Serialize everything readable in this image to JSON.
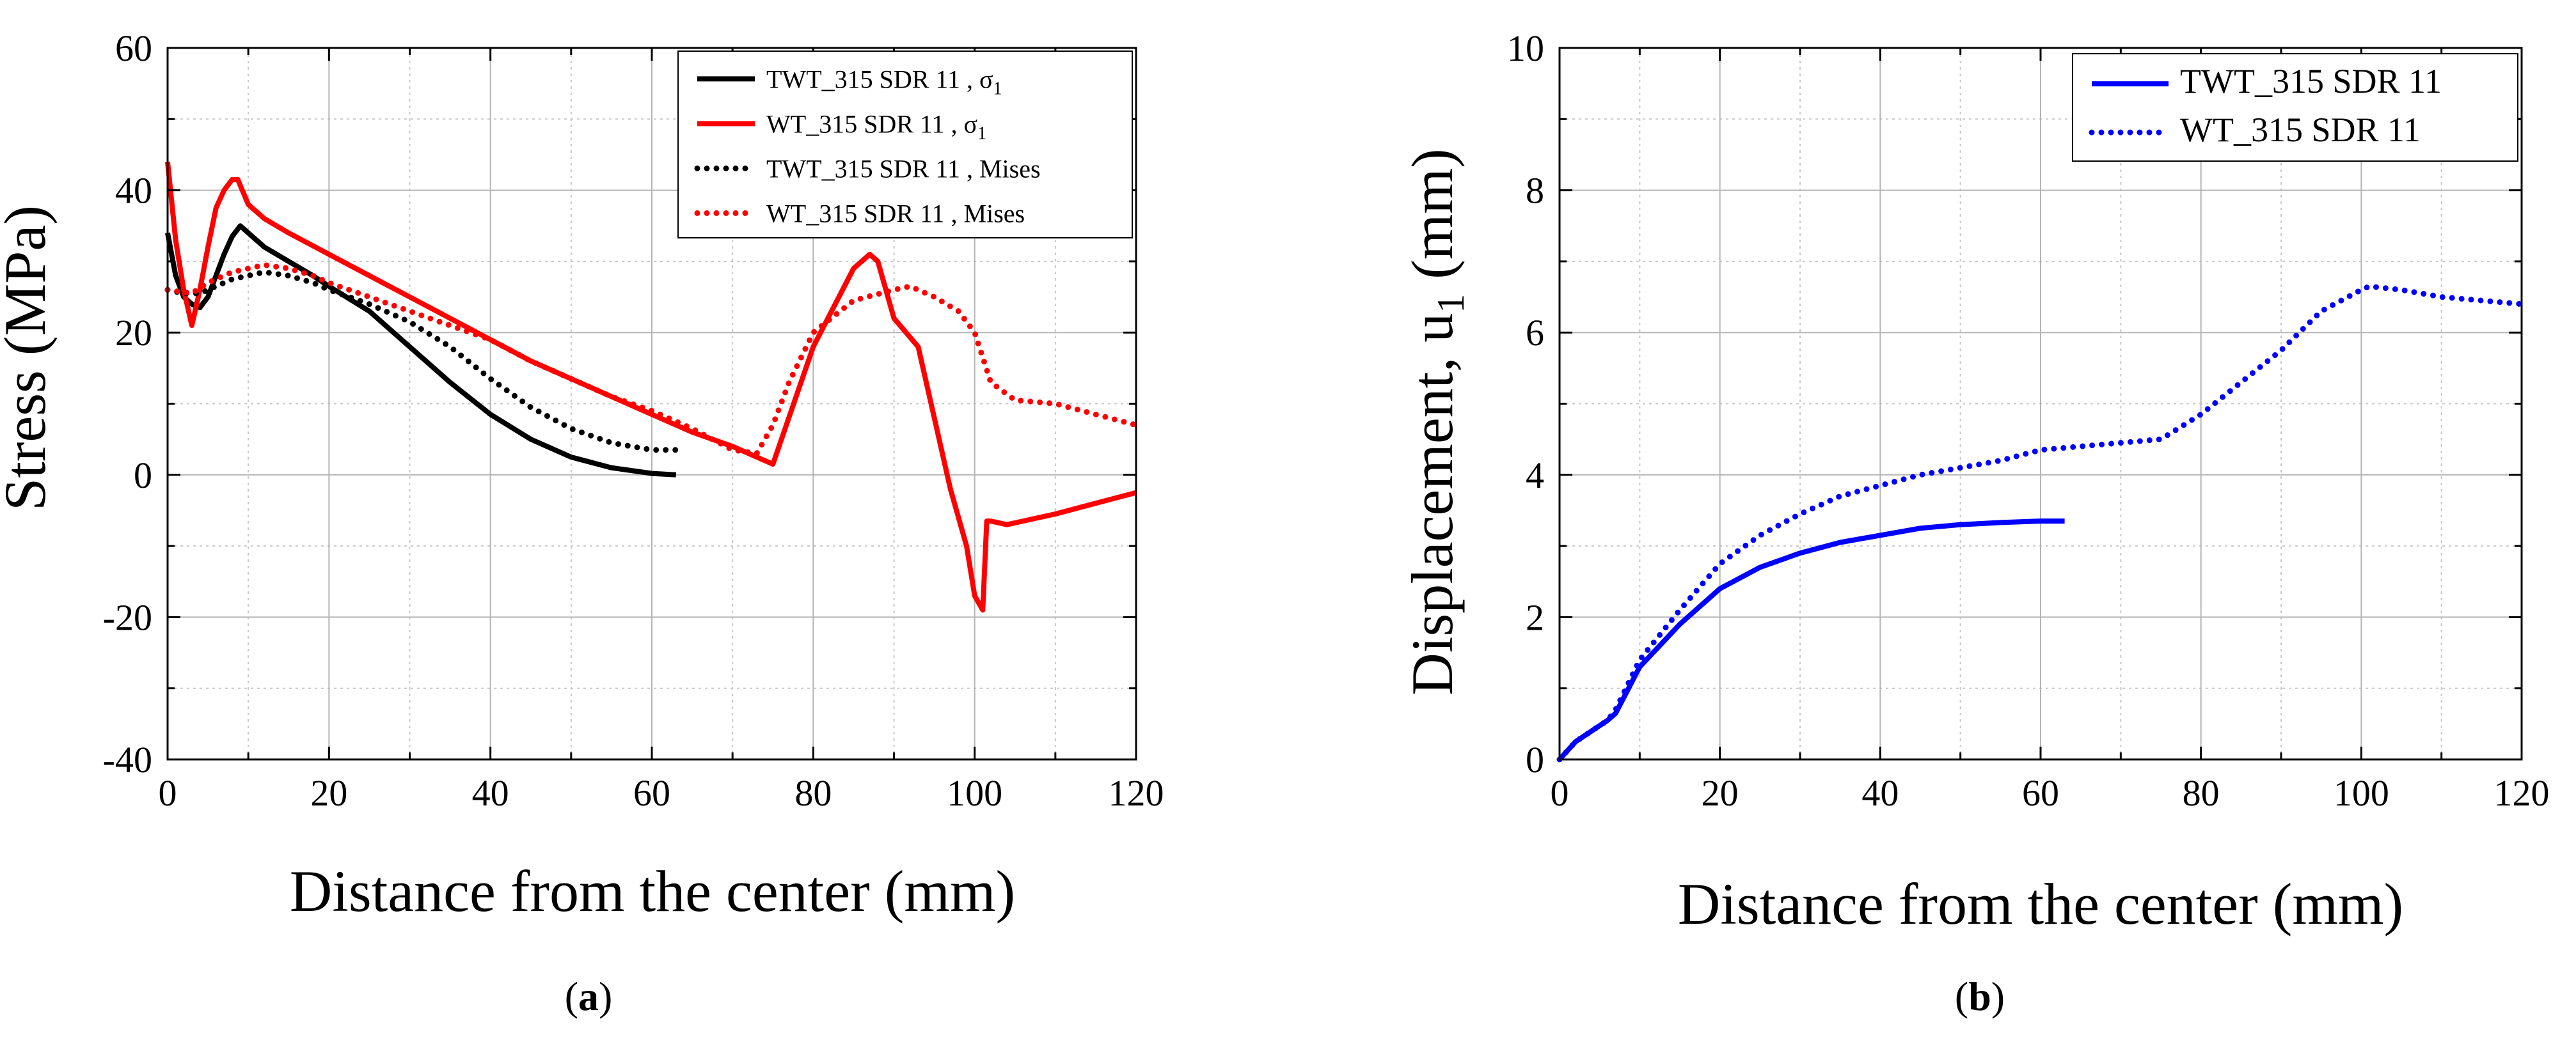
{
  "chart_data": [
    {
      "type": "line",
      "panel": "a",
      "caption": {
        "open": "(",
        "letter": "a",
        "close": ")"
      },
      "xlabel": "Distance from the center (mm)",
      "ylabel": "Stress (MPa)",
      "xlim": [
        0,
        120
      ],
      "ylim": [
        -40,
        60
      ],
      "xticks": [
        0,
        20,
        40,
        60,
        80,
        100,
        120
      ],
      "yticks": [
        -40,
        -20,
        0,
        20,
        40,
        60
      ],
      "grid": true,
      "legend_position": "top-right",
      "series": [
        {
          "name": "TWT_315 SDR 11 , σ1",
          "legend": {
            "main": "TWT_315 SDR 11 , σ",
            "sub": "1"
          },
          "color": "#000000",
          "style": "solid",
          "x": [
            0,
            1,
            2,
            3,
            4,
            5,
            6,
            7,
            8,
            9,
            10,
            12,
            15,
            18,
            20,
            25,
            30,
            35,
            40,
            45,
            50,
            55,
            60,
            63
          ],
          "y": [
            34,
            28,
            25,
            24,
            23.5,
            25,
            28,
            31,
            33.5,
            35,
            34,
            32,
            30,
            28,
            26.5,
            23,
            18,
            13,
            8.5,
            5,
            2.5,
            1,
            0.2,
            0
          ]
        },
        {
          "name": "WT_315 SDR 11 , σ1",
          "legend": {
            "main": "WT_315 SDR 11 , σ",
            "sub": "1"
          },
          "color": "#ff0000",
          "style": "solid",
          "x": [
            0,
            1,
            2,
            3,
            4,
            5,
            6,
            7,
            8,
            8.7,
            10,
            12,
            15,
            20,
            25,
            30,
            35,
            40,
            45,
            50,
            55,
            60,
            65,
            70,
            75,
            80,
            85,
            87,
            88,
            90,
            93,
            95,
            97,
            99,
            100,
            101,
            101.5,
            102,
            104,
            106,
            110,
            115,
            120
          ],
          "y": [
            44,
            33,
            26,
            21,
            26,
            32,
            37.5,
            40,
            41.5,
            41.5,
            38,
            36,
            34,
            31,
            28,
            25,
            22,
            19,
            16,
            13.5,
            11,
            8.5,
            6,
            4,
            1.5,
            18,
            29,
            31,
            30,
            22,
            18,
            8,
            -2,
            -10,
            -17,
            -19,
            -6.5,
            -6.5,
            -7,
            -6.5,
            -5.5,
            -4,
            -2.5
          ]
        },
        {
          "name": "TWT_315 SDR 11 , Mises",
          "legend": {
            "main": "TWT_315 SDR 11 , Mises",
            "sub": ""
          },
          "color": "#000000",
          "style": "dotted",
          "x": [
            0,
            2,
            4,
            6,
            8,
            10,
            12,
            15,
            18,
            20,
            25,
            30,
            35,
            40,
            45,
            50,
            55,
            60,
            63
          ],
          "y": [
            26,
            25.5,
            25.5,
            26.5,
            27.5,
            28,
            28.5,
            28,
            27,
            26,
            24,
            21.5,
            18,
            13.5,
            9.5,
            6.5,
            4.5,
            3.5,
            3.5
          ]
        },
        {
          "name": "WT_315 SDR 11 , Mises",
          "legend": {
            "main": "WT_315 SDR 11 , Mises",
            "sub": ""
          },
          "color": "#ff0000",
          "style": "dotted",
          "x": [
            0,
            3,
            5,
            8,
            10,
            12,
            15,
            18,
            20,
            25,
            30,
            35,
            40,
            45,
            50,
            55,
            60,
            65,
            70,
            73,
            75,
            77,
            80,
            85,
            90,
            92,
            95,
            98,
            100,
            102,
            105,
            110,
            115,
            120
          ],
          "y": [
            26,
            25.5,
            27,
            28.5,
            29,
            29.5,
            29,
            28,
            27,
            25,
            23,
            21,
            19,
            16,
            13.5,
            11,
            9,
            6.5,
            3.5,
            3,
            7,
            13,
            20,
            24.5,
            26,
            26.5,
            25,
            23,
            20,
            13,
            10.5,
            10,
            8.5,
            7
          ]
        }
      ]
    },
    {
      "type": "line",
      "panel": "b",
      "caption": {
        "open": "(",
        "letter": "b",
        "close": ")"
      },
      "xlabel": "Distance from the center (mm)",
      "ylabel": {
        "main": "Displacement, u",
        "sub": "1",
        "unit": " (mm)"
      },
      "xlim": [
        0,
        120
      ],
      "ylim": [
        0,
        10
      ],
      "xticks": [
        0,
        20,
        40,
        60,
        80,
        100,
        120
      ],
      "yticks": [
        0,
        2,
        4,
        6,
        8,
        10
      ],
      "grid": true,
      "legend_position": "top-right",
      "series": [
        {
          "name": "TWT_315 SDR 11",
          "color": "#0000ff",
          "style": "solid",
          "x": [
            0,
            2,
            4,
            6,
            7,
            10,
            15,
            20,
            25,
            30,
            35,
            40,
            45,
            50,
            55,
            60,
            63
          ],
          "y": [
            0,
            0.25,
            0.4,
            0.55,
            0.65,
            1.3,
            1.9,
            2.4,
            2.7,
            2.9,
            3.05,
            3.15,
            3.25,
            3.3,
            3.33,
            3.35,
            3.35
          ]
        },
        {
          "name": "WT_315 SDR 11",
          "color": "#0000ff",
          "style": "dotted",
          "x": [
            0,
            2,
            4,
            6,
            7,
            10,
            15,
            20,
            25,
            30,
            35,
            40,
            45,
            50,
            55,
            60,
            65,
            70,
            75,
            80,
            85,
            90,
            95,
            100,
            101,
            105,
            110,
            115,
            120
          ],
          "y": [
            0,
            0.25,
            0.4,
            0.55,
            0.7,
            1.4,
            2.1,
            2.75,
            3.15,
            3.45,
            3.7,
            3.85,
            4.0,
            4.1,
            4.2,
            4.35,
            4.4,
            4.45,
            4.5,
            4.85,
            5.3,
            5.75,
            6.3,
            6.6,
            6.65,
            6.6,
            6.5,
            6.45,
            6.4
          ]
        }
      ]
    }
  ]
}
